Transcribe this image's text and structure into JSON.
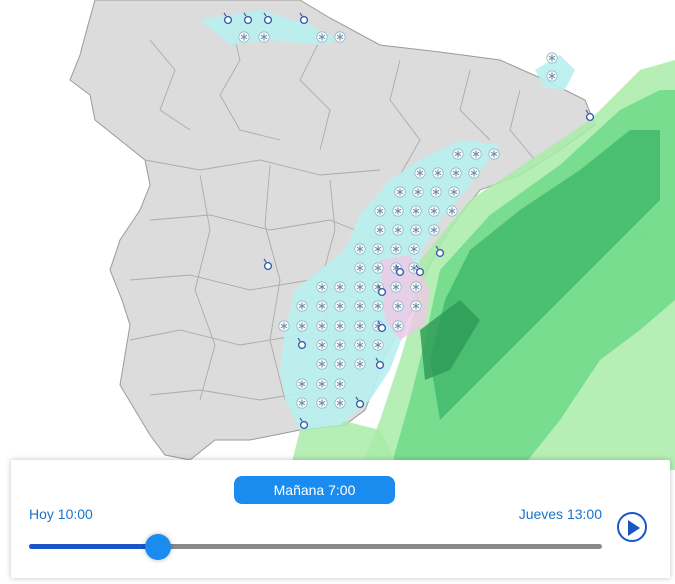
{
  "colors": {
    "accent": "#1a8cf0",
    "land": "#dcdcdc",
    "snow": "#b9f0f0",
    "rain_light": "#a8eca8",
    "rain_mid": "#6fd98a",
    "rain_heavy": "#3fb86a",
    "mixed": "#f0c8e6"
  },
  "icons": {
    "snow": "snowflake-icon",
    "sleet": "sleet-icon",
    "play": "play-icon"
  },
  "timeline": {
    "current_label": "Mañana 7:00",
    "start_label": "Hoy 10:00",
    "end_label": "Jueves 13:00",
    "progress": 0.225
  }
}
